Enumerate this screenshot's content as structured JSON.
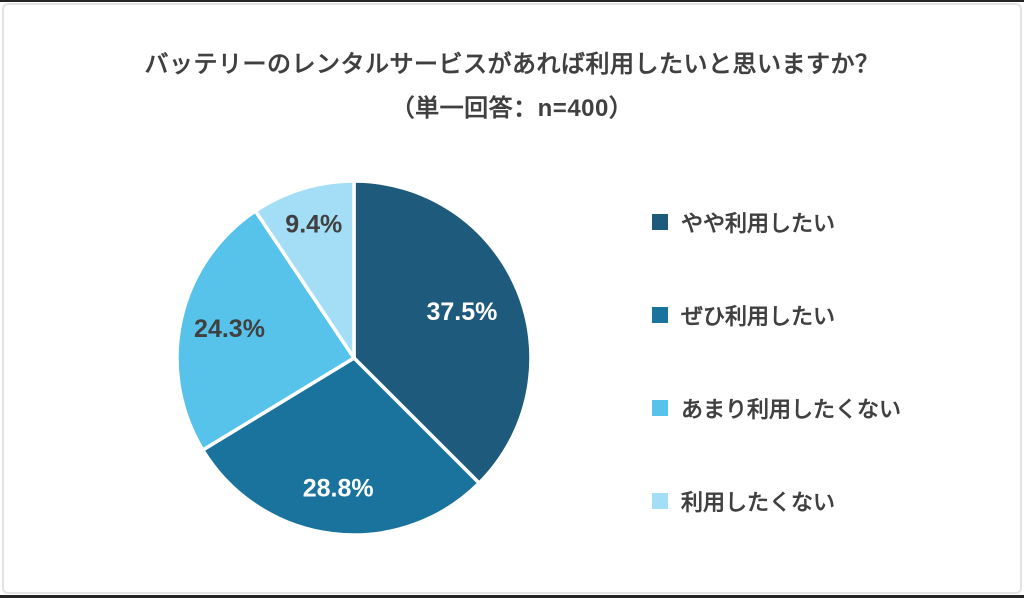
{
  "page": {
    "background": "#ffffff",
    "card_border_color": "#e3e3e3",
    "edge_strip_color": "#242424"
  },
  "title": {
    "line1": "バッテリーのレンタルサービスがあれば利用したいと思いますか？",
    "line2": "（単一回答：n=400）",
    "color": "#404040"
  },
  "chart_data": {
    "type": "pie",
    "title": "バッテリーのレンタルサービスがあれば利用したいと思いますか？",
    "subtitle": "（単一回答：n=400）",
    "sample_size": 400,
    "start_angle_deg": 0,
    "direction": "clockwise",
    "legend_position": "right",
    "divider_color": "#ffffff",
    "slices": [
      {
        "label": "やや利用したい",
        "value": 37.5,
        "display": "37.5%",
        "color": "#1e5a7c",
        "label_color": "#ffffff",
        "label_r": 0.66
      },
      {
        "label": "ぜひ利用したい",
        "value": 28.8,
        "display": "28.8%",
        "color": "#1a739c",
        "label_color": "#ffffff",
        "label_r": 0.75
      },
      {
        "label": "あまり利用したくない",
        "value": 24.3,
        "display": "24.3%",
        "color": "#57c3eb",
        "label_color": "#404040",
        "label_r": 0.72
      },
      {
        "label": "利用したくない",
        "value": 9.4,
        "display": "9.4%",
        "color": "#a4def6",
        "label_color": "#404040",
        "label_r": 0.78
      }
    ]
  }
}
